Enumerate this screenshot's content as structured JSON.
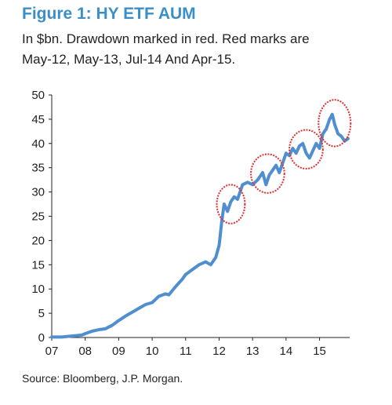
{
  "title": "Figure 1: HY ETF AUM",
  "subtitle_line1": "In $bn. Drawdown marked in red. Red marks are",
  "subtitle_line2": "May-12, May-13, Jul-14 And Apr-15.",
  "source": "Source:  Bloomberg, J.P. Morgan.",
  "chart_data": {
    "type": "line",
    "title": "Figure 1: HY ETF AUM",
    "xlabel": "",
    "ylabel": "",
    "ylim": [
      0,
      50
    ],
    "xlim": [
      2007,
      2015.9
    ],
    "y_ticks": [
      "0",
      "5",
      "10",
      "15",
      "20",
      "25",
      "30",
      "35",
      "40",
      "45",
      "50"
    ],
    "x_ticks": [
      {
        "label": "07",
        "x": 2007
      },
      {
        "label": "08",
        "x": 2008
      },
      {
        "label": "09",
        "x": 2009
      },
      {
        "label": "10",
        "x": 2010
      },
      {
        "label": "11",
        "x": 2011
      },
      {
        "label": "12",
        "x": 2012
      },
      {
        "label": "13",
        "x": 2013
      },
      {
        "label": "14",
        "x": 2014
      },
      {
        "label": "15",
        "x": 2015
      }
    ],
    "grid": false,
    "line_color": "#4f8fd0",
    "highlight_color": "#e03030",
    "series": [
      {
        "x": [
          2007.0,
          2007.3,
          2007.6,
          2007.9,
          2008.0,
          2008.2,
          2008.4,
          2008.6,
          2008.8,
          2009.0,
          2009.2,
          2009.4,
          2009.6,
          2009.8,
          2010.0,
          2010.2,
          2010.4,
          2010.5,
          2010.7,
          2010.9,
          2011.0,
          2011.2,
          2011.4,
          2011.6,
          2011.75,
          2011.9,
          2012.0,
          2012.08,
          2012.15,
          2012.25,
          2012.35,
          2012.45,
          2012.55,
          2012.7,
          2012.85,
          2013.0,
          2013.15,
          2013.3,
          2013.4,
          2013.5,
          2013.6,
          2013.7,
          2013.8,
          2013.9,
          2014.0,
          2014.1,
          2014.2,
          2014.3,
          2014.4,
          2014.5,
          2014.6,
          2014.7,
          2014.8,
          2014.9,
          2015.0,
          2015.1,
          2015.2,
          2015.3,
          2015.38,
          2015.45,
          2015.55,
          2015.65,
          2015.75,
          2015.85
        ],
        "y": [
          0.1,
          0.1,
          0.3,
          0.5,
          0.8,
          1.3,
          1.6,
          1.8,
          2.5,
          3.5,
          4.4,
          5.2,
          6.0,
          6.8,
          7.2,
          8.5,
          9.0,
          8.8,
          10.5,
          12.0,
          13.0,
          14.0,
          15.0,
          15.6,
          15.0,
          16.5,
          19.0,
          24.0,
          27.5,
          26.0,
          28.0,
          29.0,
          28.5,
          31.5,
          32.0,
          31.5,
          32.5,
          34.0,
          31.5,
          33.5,
          34.5,
          35.5,
          34.0,
          36.0,
          38.0,
          37.5,
          39.0,
          38.0,
          39.5,
          40.0,
          38.0,
          37.0,
          38.5,
          40.0,
          39.0,
          42.0,
          43.0,
          45.0,
          46.0,
          44.0,
          42.0,
          41.5,
          40.5,
          41.0
        ]
      }
    ],
    "highlights": [
      {
        "label": "May-12",
        "x": 2012.35,
        "y": 27.5,
        "rx": 0.42,
        "ry": 4.0
      },
      {
        "label": "May-13",
        "x": 2013.45,
        "y": 33.8,
        "rx": 0.5,
        "ry": 4.0
      },
      {
        "label": "Jul-14",
        "x": 2014.6,
        "y": 38.8,
        "rx": 0.5,
        "ry": 4.0
      },
      {
        "label": "Apr-15",
        "x": 2015.45,
        "y": 44.2,
        "rx": 0.48,
        "ry": 4.8
      }
    ]
  }
}
